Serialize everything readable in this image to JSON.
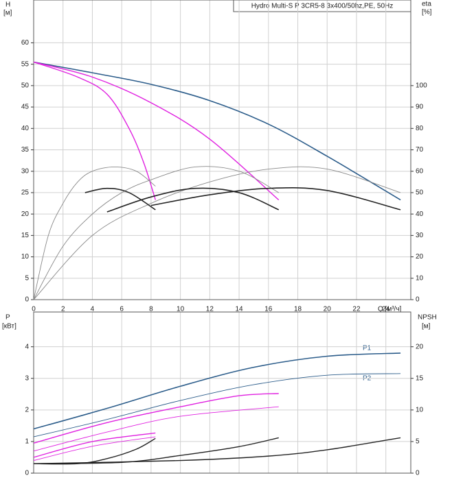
{
  "chart_data": [
    {
      "type": "line",
      "title": "Hydro Multi-S P 3CR5-8 3x400/50hz,PE, 50Hz",
      "y_label": "H",
      "y_unit": "[м]",
      "y2_label": "eta",
      "y2_unit": "[%]",
      "x_label": "Q [м³/ч]",
      "xlim": [
        0,
        25.7
      ],
      "xticks": [
        0,
        2,
        4,
        6,
        8,
        10,
        12,
        14,
        16,
        18,
        20,
        22,
        24
      ],
      "ylim": [
        0,
        70
      ],
      "yticks": [
        0,
        5,
        10,
        15,
        20,
        25,
        30,
        35,
        40,
        45,
        50,
        55,
        60
      ],
      "y2lim": [
        0,
        140
      ],
      "y2ticks": [
        0,
        10,
        20,
        30,
        40,
        50,
        60,
        70,
        80,
        90,
        100
      ],
      "grid": true,
      "series": [
        {
          "color": "#2b5c8a",
          "line_width": 1.6,
          "x": [
            0,
            4,
            8,
            12,
            16,
            20,
            25
          ],
          "values": [
            55.5,
            53,
            50.3,
            46.5,
            41,
            33.5,
            23.3
          ]
        },
        {
          "color": "#e020e0",
          "line_width": 1.4,
          "x": [
            0,
            4,
            8,
            12,
            16.7
          ],
          "values": [
            55.5,
            52,
            46,
            37.5,
            23.3
          ]
        },
        {
          "color": "#e020e0",
          "line_width": 1.4,
          "x": [
            0,
            3,
            5,
            6.5,
            7.5,
            8.3
          ],
          "values": [
            55.5,
            52,
            48,
            40,
            32,
            23.3
          ]
        },
        {
          "color": "#888888",
          "line_width": 0.9,
          "axis": "y2",
          "x": [
            0,
            1,
            2,
            3,
            4,
            5.5,
            7,
            8.3
          ],
          "values": [
            0,
            30,
            45,
            55,
            60,
            62,
            60,
            53
          ]
        },
        {
          "color": "#888888",
          "line_width": 0.9,
          "axis": "y2",
          "x": [
            0,
            2,
            4,
            6,
            8,
            11,
            14,
            16.7
          ],
          "values": [
            0,
            25,
            40,
            50,
            56,
            62,
            60,
            50
          ]
        },
        {
          "color": "#888888",
          "line_width": 0.9,
          "axis": "y2",
          "x": [
            0,
            4,
            8,
            12,
            16,
            20,
            25
          ],
          "values": [
            0,
            30,
            45,
            55,
            61,
            61,
            50
          ]
        },
        {
          "color": "#222222",
          "line_width": 1.6,
          "axis": "y2",
          "x": [
            3.5,
            5,
            6.5,
            8.3
          ],
          "values": [
            50,
            52,
            50,
            42
          ]
        },
        {
          "color": "#222222",
          "line_width": 1.6,
          "axis": "y2",
          "x": [
            5,
            8,
            11,
            14,
            16.7
          ],
          "values": [
            41,
            48,
            52,
            50,
            42
          ]
        },
        {
          "color": "#222222",
          "line_width": 1.6,
          "axis": "y2",
          "x": [
            8,
            12,
            16,
            20,
            25
          ],
          "values": [
            44,
            49,
            52,
            51,
            42
          ]
        }
      ]
    },
    {
      "type": "line",
      "y_label": "P",
      "y_unit": "[кВт]",
      "y2_label": "NPSH",
      "y2_unit": "[м]",
      "xlim": [
        0,
        25.7
      ],
      "ylim": [
        0,
        5.1
      ],
      "yticks": [
        0,
        1,
        2,
        3,
        4
      ],
      "y2lim": [
        0,
        25.5
      ],
      "y2ticks": [
        0,
        5,
        10,
        15,
        20
      ],
      "grid": true,
      "annotations": [
        "P1",
        "P2"
      ],
      "series": [
        {
          "color": "#2b5c8a",
          "line_width": 1.6,
          "x": [
            0,
            5,
            10,
            15,
            20,
            25
          ],
          "values": [
            1.4,
            2.05,
            2.75,
            3.35,
            3.7,
            3.8
          ]
        },
        {
          "color": "#2b5c8a",
          "line_width": 0.9,
          "x": [
            0,
            5,
            10,
            15,
            20,
            25
          ],
          "values": [
            1.15,
            1.7,
            2.3,
            2.8,
            3.1,
            3.15
          ]
        },
        {
          "color": "#e020e0",
          "line_width": 1.4,
          "x": [
            0,
            5,
            10,
            14,
            16.7
          ],
          "values": [
            0.95,
            1.6,
            2.1,
            2.45,
            2.52
          ]
        },
        {
          "color": "#e020e0",
          "line_width": 0.9,
          "x": [
            0,
            5,
            10,
            16.7
          ],
          "values": [
            0.7,
            1.3,
            1.8,
            2.1
          ]
        },
        {
          "color": "#e020e0",
          "line_width": 1.4,
          "x": [
            0,
            4,
            8.3
          ],
          "values": [
            0.5,
            1,
            1.27
          ]
        },
        {
          "color": "#e020e0",
          "line_width": 0.9,
          "x": [
            0,
            4,
            8.3
          ],
          "values": [
            0.4,
            0.85,
            1.15
          ]
        },
        {
          "color": "#222222",
          "line_width": 1.4,
          "axis": "y2",
          "x": [
            0,
            3,
            5,
            7,
            8.3
          ],
          "values": [
            1.5,
            1.5,
            2.3,
            3.8,
            5.5
          ]
        },
        {
          "color": "#222222",
          "line_width": 1.4,
          "axis": "y2",
          "x": [
            0,
            6,
            10,
            14,
            16.7
          ],
          "values": [
            1.5,
            1.7,
            2.8,
            4.2,
            5.6
          ]
        },
        {
          "color": "#222222",
          "line_width": 1.4,
          "axis": "y2",
          "x": [
            0,
            10,
            16,
            20,
            25
          ],
          "values": [
            1.5,
            2,
            2.7,
            3.7,
            5.6
          ]
        }
      ]
    }
  ]
}
